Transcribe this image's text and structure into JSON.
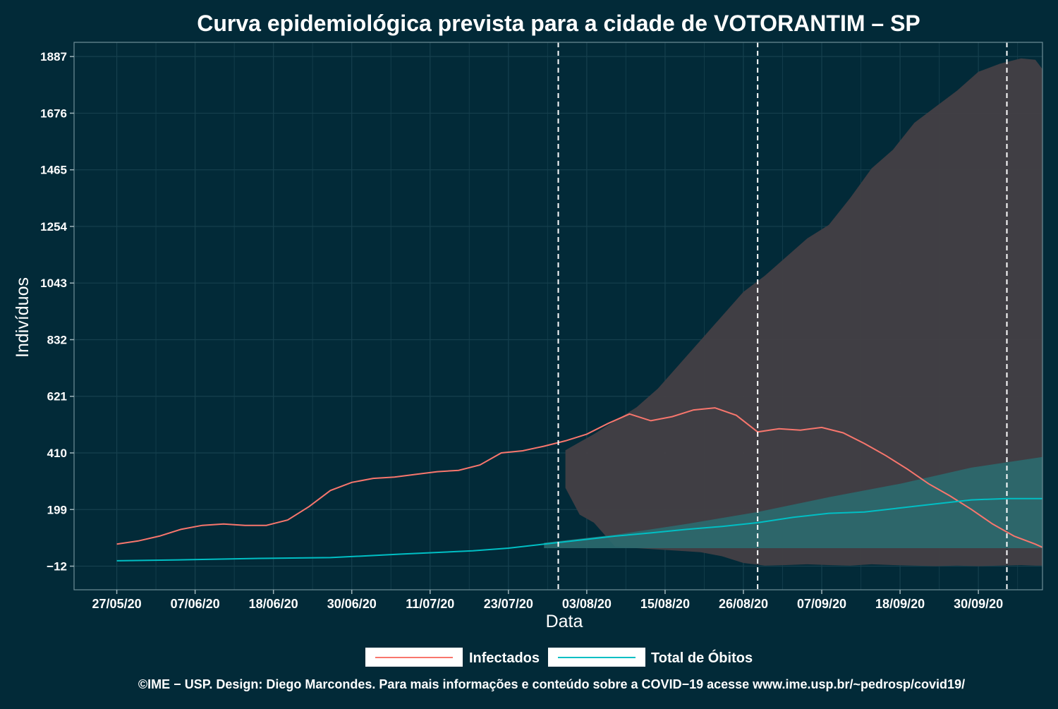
{
  "chart_data": {
    "type": "line",
    "title": "Curva epidemiológica prevista para a cidade de VOTORANTIM – SP",
    "xlabel": "Data",
    "ylabel": "Indivíduos",
    "x_tick_labels": [
      "27/05/20",
      "07/06/20",
      "18/06/20",
      "30/06/20",
      "11/07/20",
      "23/07/20",
      "03/08/20",
      "15/08/20",
      "26/08/20",
      "07/09/20",
      "18/09/20",
      "30/09/20"
    ],
    "y_tick_labels": [
      "−12",
      "199",
      "410",
      "621",
      "832",
      "1043",
      "1254",
      "1465",
      "1676",
      "1887"
    ],
    "y_ticks": [
      -12,
      199,
      410,
      621,
      832,
      1043,
      1254,
      1465,
      1676,
      1887
    ],
    "ylim": [
      -100,
      1940
    ],
    "x_range_days": [
      -6,
      130
    ],
    "grid": true,
    "legend_position": "bottom",
    "vertical_markers_day": [
      62,
      90,
      125
    ],
    "series": [
      {
        "name": "Infectados",
        "color": "#f8766d",
        "x_day": [
          0,
          3,
          6,
          9,
          12,
          15,
          18,
          21,
          24,
          27,
          30,
          33,
          36,
          39,
          42,
          45,
          48,
          51,
          54,
          57,
          60,
          63,
          66,
          69,
          72,
          75,
          78,
          81,
          84,
          87,
          90,
          93,
          96,
          99,
          102,
          105,
          108,
          111,
          114,
          117,
          120,
          123,
          126,
          129,
          130
        ],
        "y": [
          70,
          82,
          100,
          125,
          140,
          145,
          140,
          140,
          160,
          210,
          270,
          300,
          315,
          320,
          330,
          340,
          345,
          365,
          410,
          418,
          435,
          455,
          480,
          520,
          555,
          530,
          545,
          570,
          578,
          550,
          488,
          500,
          495,
          505,
          485,
          445,
          400,
          350,
          295,
          250,
          200,
          145,
          100,
          70,
          58
        ]
      },
      {
        "name": "Total de Óbitos",
        "color": "#00bfc4",
        "x_day": [
          0,
          10,
          20,
          30,
          40,
          50,
          55,
          60,
          65,
          70,
          75,
          80,
          85,
          90,
          95,
          100,
          105,
          110,
          115,
          120,
          125,
          130
        ],
        "y": [
          8,
          12,
          17,
          20,
          33,
          45,
          55,
          70,
          85,
          100,
          112,
          125,
          136,
          150,
          170,
          185,
          190,
          205,
          220,
          235,
          240,
          240
        ]
      }
    ],
    "confidence_band": {
      "x_day": [
        63,
        65,
        67,
        70,
        73,
        76,
        79,
        82,
        85,
        88,
        91,
        94,
        97,
        100,
        103,
        106,
        109,
        112,
        115,
        118,
        121,
        124,
        127,
        129,
        130
      ],
      "upper": [
        420,
        450,
        480,
        530,
        580,
        650,
        740,
        830,
        920,
        1010,
        1070,
        1140,
        1210,
        1260,
        1360,
        1470,
        1540,
        1640,
        1700,
        1760,
        1830,
        1860,
        1880,
        1875,
        1840
      ],
      "lower": [
        280,
        180,
        150,
        60,
        55,
        50,
        45,
        40,
        25,
        0,
        -10,
        -8,
        -5,
        -8,
        -10,
        -5,
        -8,
        -10,
        -12,
        -10,
        -12,
        -10,
        -8,
        -10,
        -10
      ],
      "color": "#433f45"
    },
    "deaths_band": {
      "x_day": [
        60,
        70,
        80,
        90,
        100,
        110,
        120,
        130
      ],
      "upper": [
        75,
        105,
        145,
        190,
        245,
        295,
        355,
        395
      ],
      "lower": [
        55,
        55,
        55,
        55,
        55,
        55,
        55,
        55
      ],
      "color": "#2b6a6f"
    }
  },
  "legend": {
    "infected_label": "Infectados",
    "deaths_label": "Total de Óbitos"
  },
  "caption": "©IME − USP. Design: Diego Marcondes. Para mais informações e conteúdo sobre a COVID−19 acesse www.ime.usp.br/~pedrosp/covid19/"
}
